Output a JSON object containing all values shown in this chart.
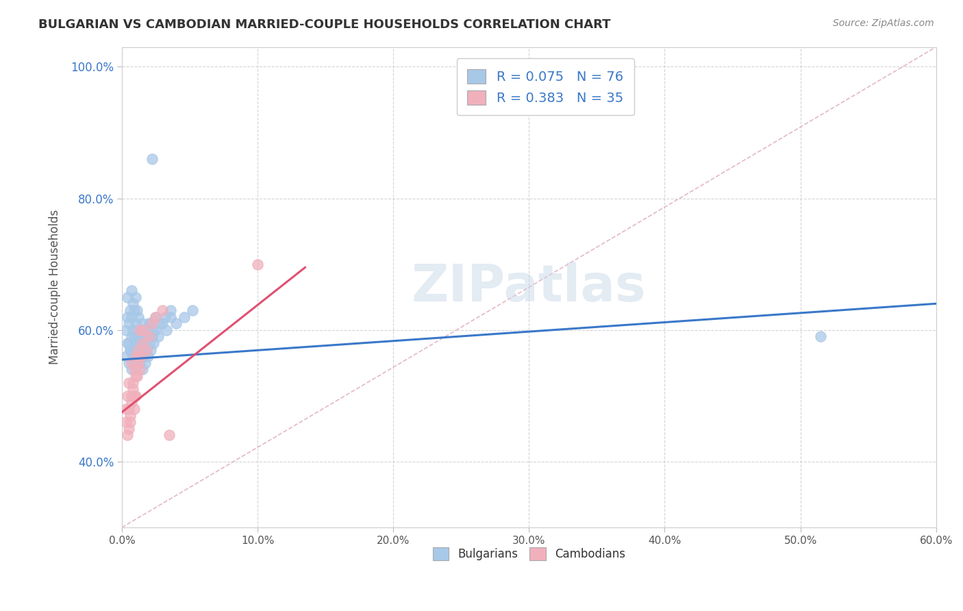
{
  "title": "BULGARIAN VS CAMBODIAN MARRIED-COUPLE HOUSEHOLDS CORRELATION CHART",
  "source": "Source: ZipAtlas.com",
  "xlim": [
    0.0,
    0.6
  ],
  "ylim": [
    0.3,
    1.03
  ],
  "ylabel": "Married-couple Households",
  "legend_labels": [
    "Bulgarians",
    "Cambodians"
  ],
  "blue_color": "#a8c8e8",
  "pink_color": "#f0b0bc",
  "blue_line_color": "#3a78c9",
  "pink_line_color": "#e05070",
  "diag_color": "#e0b0c0",
  "R_blue": 0.075,
  "N_blue": 76,
  "R_pink": 0.383,
  "N_pink": 35,
  "bg_color": "#ffffff",
  "grid_color": "#d0d0d0",
  "title_color": "#333333",
  "watermark": "ZIPatlas",
  "blue_line_x": [
    0.0,
    0.6
  ],
  "blue_line_y": [
    0.555,
    0.64
  ],
  "pink_line_x": [
    0.0,
    0.135
  ],
  "pink_line_y": [
    0.475,
    0.695
  ],
  "blue_scatter_x": [
    0.003,
    0.004,
    0.004,
    0.005,
    0.005,
    0.006,
    0.006,
    0.007,
    0.007,
    0.007,
    0.008,
    0.008,
    0.008,
    0.009,
    0.009,
    0.009,
    0.01,
    0.01,
    0.01,
    0.01,
    0.011,
    0.011,
    0.011,
    0.012,
    0.012,
    0.012,
    0.013,
    0.013,
    0.014,
    0.014,
    0.015,
    0.015,
    0.015,
    0.016,
    0.016,
    0.017,
    0.017,
    0.018,
    0.018,
    0.019,
    0.02,
    0.02,
    0.021,
    0.022,
    0.023,
    0.025,
    0.027,
    0.03,
    0.033,
    0.036,
    0.003,
    0.004,
    0.005,
    0.006,
    0.007,
    0.008,
    0.009,
    0.01,
    0.011,
    0.012,
    0.013,
    0.014,
    0.015,
    0.016,
    0.018,
    0.02,
    0.022,
    0.025,
    0.028,
    0.032,
    0.036,
    0.04,
    0.046,
    0.052,
    0.022,
    0.515
  ],
  "blue_scatter_y": [
    0.6,
    0.62,
    0.65,
    0.58,
    0.61,
    0.57,
    0.63,
    0.59,
    0.62,
    0.66,
    0.57,
    0.6,
    0.64,
    0.56,
    0.59,
    0.63,
    0.55,
    0.58,
    0.61,
    0.65,
    0.57,
    0.6,
    0.63,
    0.56,
    0.59,
    0.62,
    0.55,
    0.58,
    0.57,
    0.6,
    0.54,
    0.57,
    0.61,
    0.56,
    0.59,
    0.55,
    0.58,
    0.57,
    0.6,
    0.56,
    0.58,
    0.61,
    0.57,
    0.59,
    0.58,
    0.6,
    0.59,
    0.61,
    0.6,
    0.62,
    0.56,
    0.58,
    0.55,
    0.57,
    0.54,
    0.56,
    0.55,
    0.57,
    0.56,
    0.58,
    0.57,
    0.59,
    0.58,
    0.6,
    0.59,
    0.61,
    0.6,
    0.62,
    0.61,
    0.62,
    0.63,
    0.61,
    0.62,
    0.63,
    0.86,
    0.59
  ],
  "pink_scatter_x": [
    0.003,
    0.004,
    0.005,
    0.005,
    0.006,
    0.007,
    0.007,
    0.008,
    0.009,
    0.009,
    0.01,
    0.01,
    0.011,
    0.012,
    0.013,
    0.013,
    0.014,
    0.015,
    0.016,
    0.018,
    0.02,
    0.022,
    0.025,
    0.03,
    0.035,
    0.003,
    0.004,
    0.005,
    0.006,
    0.007,
    0.008,
    0.009,
    0.01,
    0.012,
    0.1
  ],
  "pink_scatter_y": [
    0.48,
    0.5,
    0.45,
    0.52,
    0.47,
    0.5,
    0.55,
    0.52,
    0.48,
    0.54,
    0.5,
    0.56,
    0.53,
    0.57,
    0.54,
    0.6,
    0.56,
    0.58,
    0.6,
    0.57,
    0.59,
    0.61,
    0.62,
    0.63,
    0.44,
    0.46,
    0.44,
    0.48,
    0.46,
    0.49,
    0.51,
    0.5,
    0.53,
    0.55,
    0.7
  ]
}
